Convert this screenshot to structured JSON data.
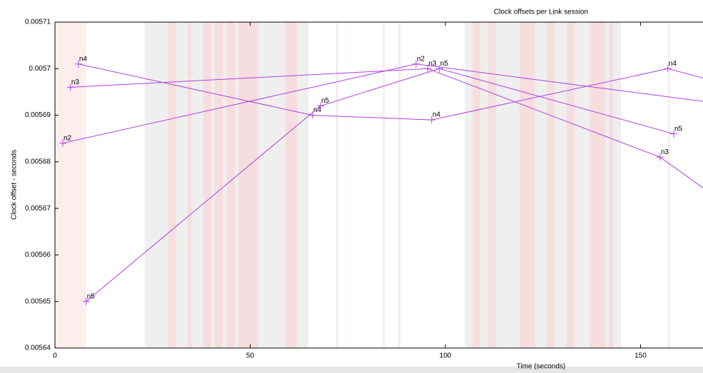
{
  "chart_data": {
    "type": "line",
    "title": "Clock offsets per Link session",
    "xlabel": "Time (seconds)",
    "ylabel": "Clock offset - seconds",
    "xlim": [
      0,
      166
    ],
    "xticks": [
      0,
      50,
      100,
      150
    ],
    "ylim": [
      0.00564,
      0.00571
    ],
    "yticks": [
      0.00564,
      0.00565,
      0.00566,
      0.00567,
      0.00568,
      0.00569,
      0.0057,
      0.00571
    ],
    "grid": false,
    "regions": [
      {
        "color": "#fdeeee",
        "x": [
          0,
          8
        ]
      },
      {
        "color": "#efefef",
        "x": [
          23,
          65
        ]
      },
      {
        "color": "#efefef",
        "x": [
          105,
          145
        ]
      },
      {
        "color": "#f6dede",
        "x": [
          29,
          31
        ]
      },
      {
        "color": "#f6dede",
        "x": [
          34,
          35
        ]
      },
      {
        "color": "#f6dede",
        "x": [
          38,
          40
        ]
      },
      {
        "color": "#f6dede",
        "x": [
          41,
          43
        ]
      },
      {
        "color": "#f6dede",
        "x": [
          44,
          46
        ]
      },
      {
        "color": "#f6dede",
        "x": [
          47,
          52
        ]
      },
      {
        "color": "#f6dede",
        "x": [
          59,
          62
        ]
      },
      {
        "color": "#fbe9e9",
        "x": [
          72,
          72.5
        ]
      },
      {
        "color": "#fbe9e9",
        "x": [
          84,
          84.5
        ]
      },
      {
        "color": "#fbe9e9",
        "x": [
          88,
          88.5
        ]
      },
      {
        "color": "#f6dede",
        "x": [
          107,
          109
        ]
      },
      {
        "color": "#f6dede",
        "x": [
          111,
          113
        ]
      },
      {
        "color": "#f6dede",
        "x": [
          119,
          123
        ]
      },
      {
        "color": "#f6dede",
        "x": [
          126,
          128
        ]
      },
      {
        "color": "#f6dede",
        "x": [
          131,
          133
        ]
      },
      {
        "color": "#f6dede",
        "x": [
          137,
          141
        ]
      },
      {
        "color": "#f6dede",
        "x": [
          142,
          143
        ]
      },
      {
        "color": "#fbe9e9",
        "x": [
          157,
          157.5
        ]
      }
    ],
    "series": [
      {
        "name": "n2",
        "color": "#b040e0",
        "x": [
          2,
          92.5,
          175
        ],
        "values": [
          0.005684,
          0.005701,
          0.005692
        ]
      },
      {
        "name": "n3",
        "color": "#b040e0",
        "x": [
          4,
          95.5,
          155,
          175
        ],
        "values": [
          0.005696,
          0.0057,
          0.005681,
          0.005669
        ]
      },
      {
        "name": "n4",
        "color": "#b040e0",
        "x": [
          6,
          66,
          96.5,
          157,
          175
        ],
        "values": [
          0.005701,
          0.00569,
          0.005689,
          0.0057,
          0.005696
        ]
      },
      {
        "name": "n5",
        "color": "#b040e0",
        "x": [
          8,
          68,
          98.5,
          158.5
        ],
        "values": [
          0.00565,
          0.005692,
          0.0057,
          0.005686
        ]
      }
    ]
  }
}
